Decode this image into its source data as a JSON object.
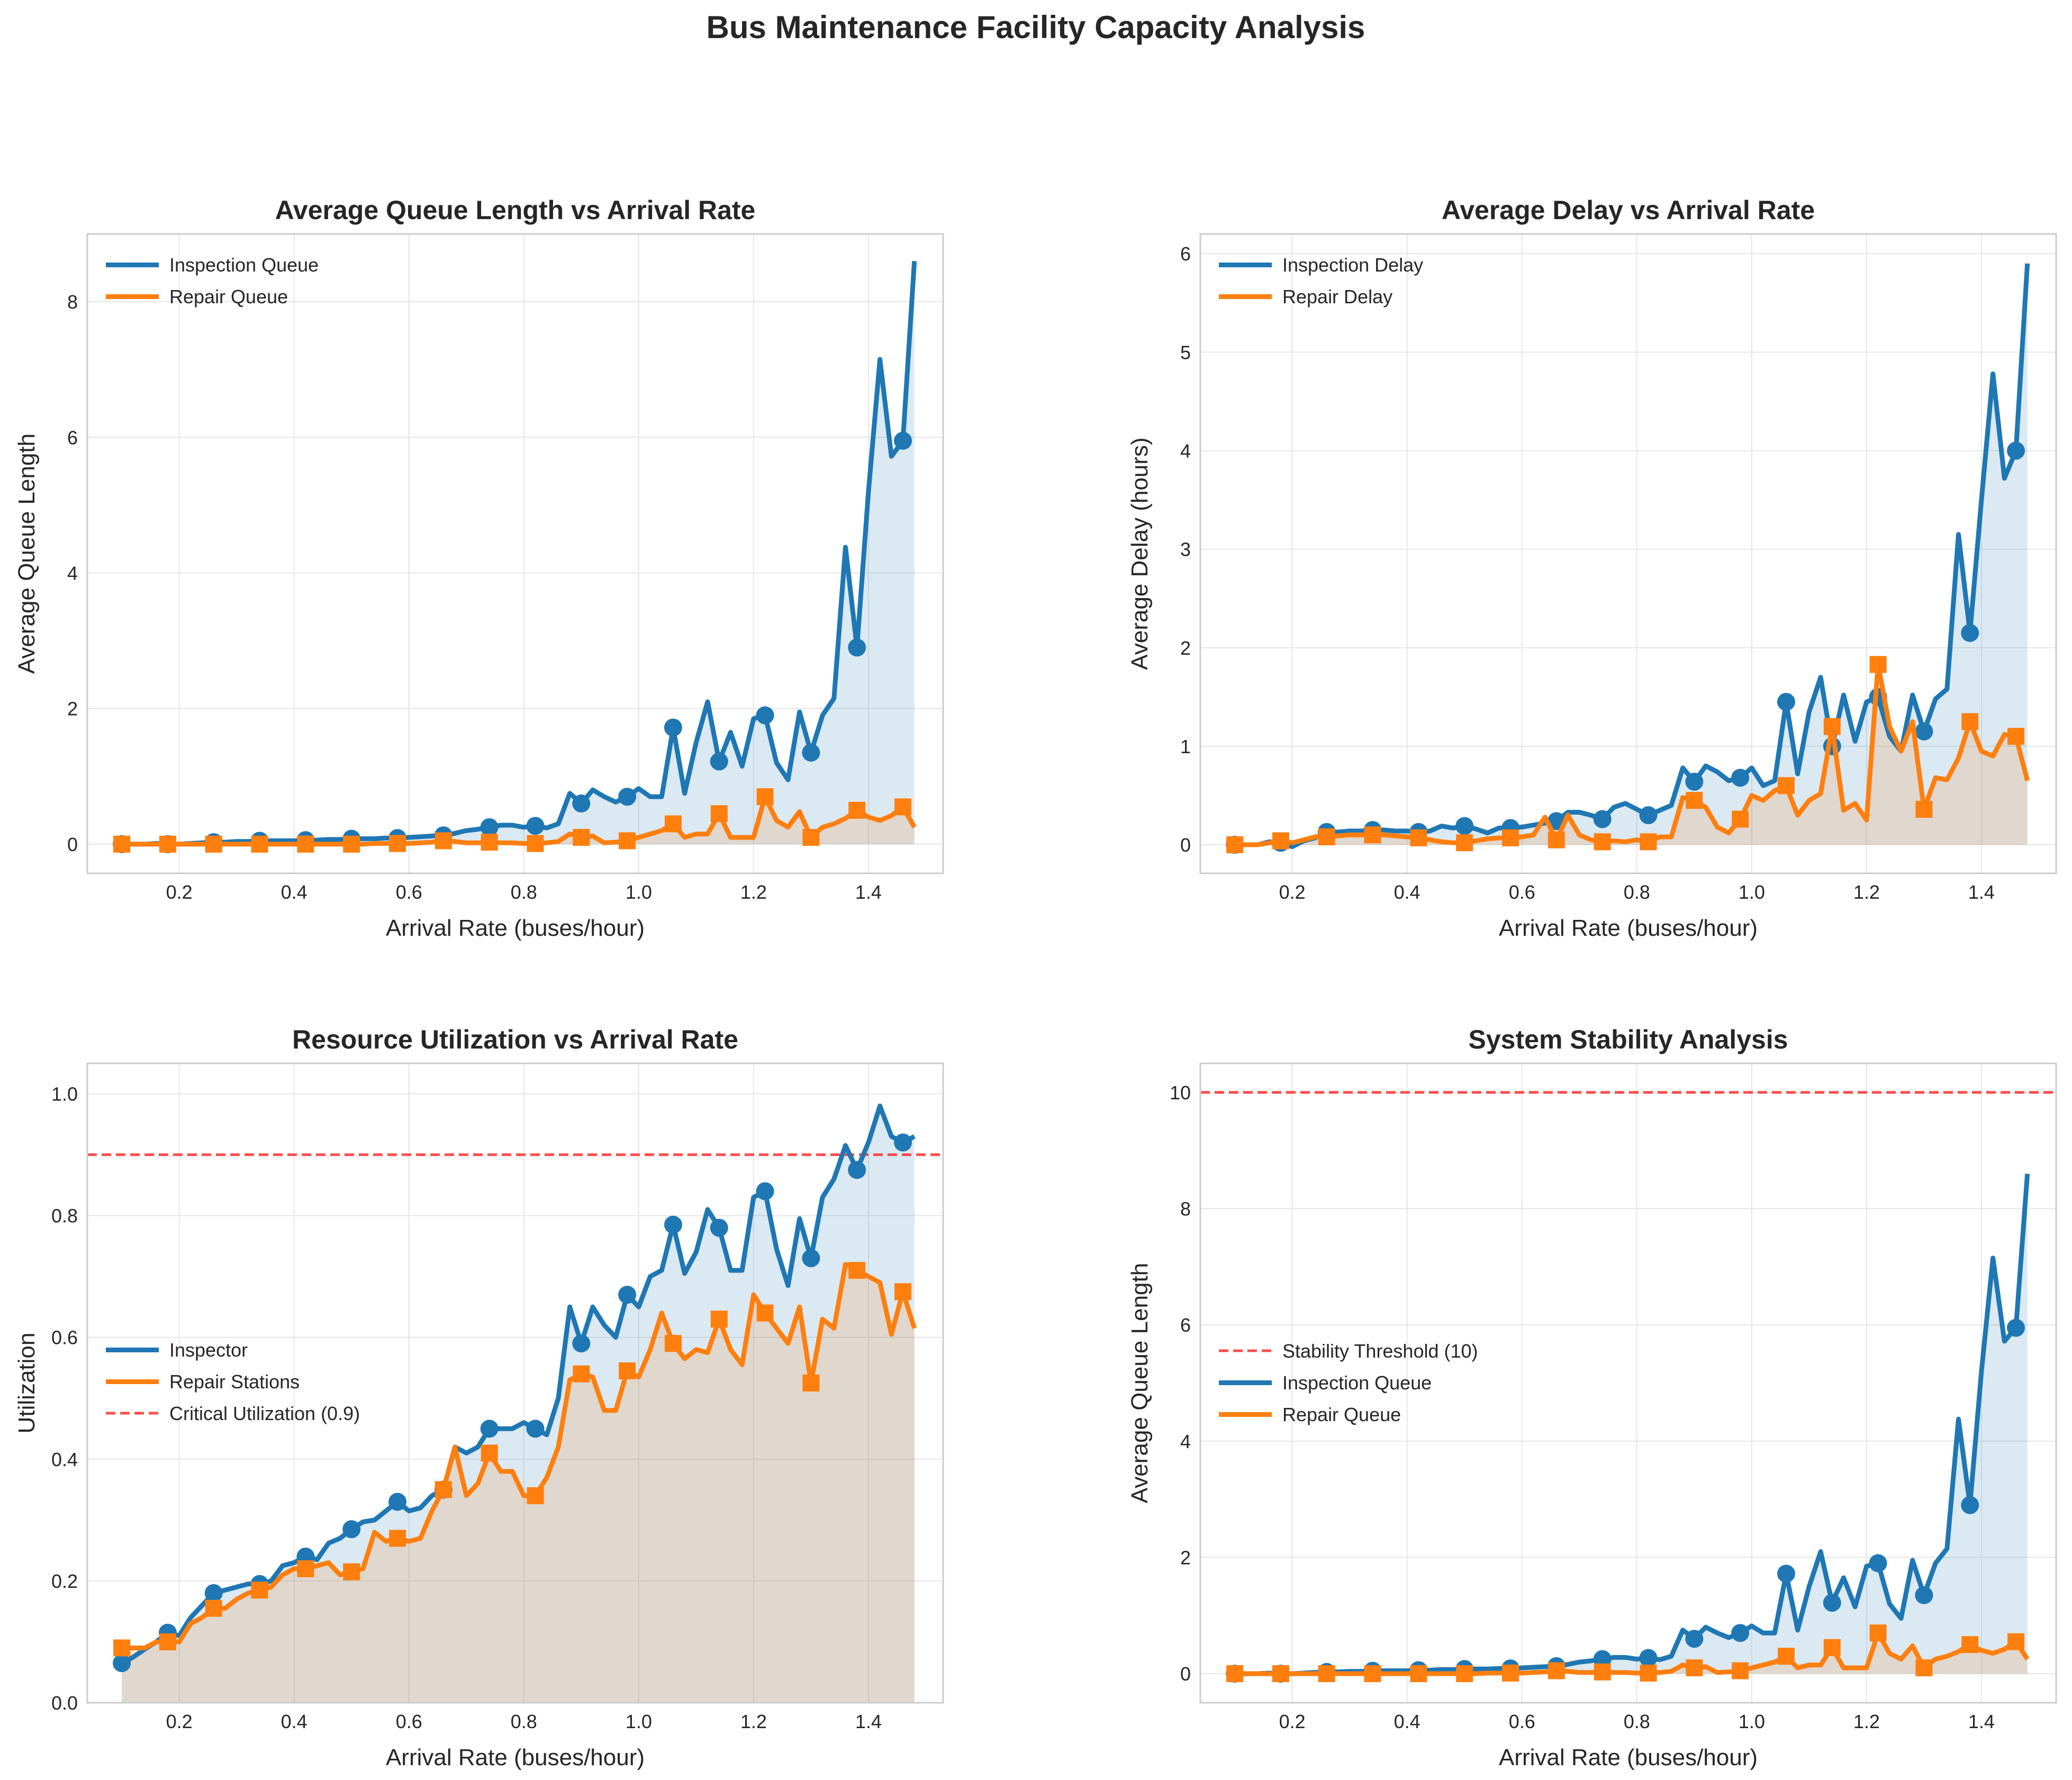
{
  "figure": {
    "suptitle": "Bus Maintenance Facility Capacity Analysis"
  },
  "colors": {
    "blue": "#1f77b4",
    "orange": "#ff7f0e",
    "red": "#ff2020",
    "grid": "#e6e6e6",
    "spine": "#cccccc",
    "text": "#262626"
  },
  "chart_data": [
    {
      "type": "line",
      "title": "Average Queue Length vs Arrival Rate",
      "xlabel": "Arrival Rate (buses/hour)",
      "ylabel": "Average Queue Length",
      "xlim": [
        0.04,
        1.53
      ],
      "ylim": [
        -0.43,
        9.0
      ],
      "xticks": [
        0.2,
        0.4,
        0.6,
        0.8,
        1.0,
        1.2,
        1.4
      ],
      "xtick_labels": [
        "0.2",
        "0.4",
        "0.6",
        "0.8",
        "1.0",
        "1.2",
        "1.4"
      ],
      "yticks": [
        0,
        2,
        4,
        6,
        8
      ],
      "ytick_labels": [
        "0",
        "2",
        "4",
        "6",
        "8"
      ],
      "legend": "top-left",
      "x": [
        0.1,
        0.12,
        0.14,
        0.16,
        0.18,
        0.2,
        0.22,
        0.24,
        0.26,
        0.28,
        0.3,
        0.32,
        0.34,
        0.36,
        0.38,
        0.4,
        0.42,
        0.44,
        0.46,
        0.48,
        0.5,
        0.52,
        0.54,
        0.56,
        0.58,
        0.6,
        0.62,
        0.64,
        0.66,
        0.68,
        0.7,
        0.72,
        0.74,
        0.76,
        0.78,
        0.8,
        0.82,
        0.84,
        0.86,
        0.88,
        0.9,
        0.92,
        0.94,
        0.96,
        0.98,
        1.0,
        1.02,
        1.04,
        1.06,
        1.08,
        1.1,
        1.12,
        1.14,
        1.16,
        1.18,
        1.2,
        1.22,
        1.24,
        1.26,
        1.28,
        1.3,
        1.32,
        1.34,
        1.36,
        1.38,
        1.4,
        1.42,
        1.44,
        1.46,
        1.48
      ],
      "marker_every": 4,
      "series": [
        {
          "name": "Inspection Queue",
          "color": "blue",
          "marker": "circle",
          "values": [
            0.0,
            0.0,
            0.0,
            0.01,
            0.0,
            0.0,
            0.01,
            0.02,
            0.03,
            0.03,
            0.04,
            0.04,
            0.05,
            0.05,
            0.05,
            0.05,
            0.06,
            0.06,
            0.07,
            0.07,
            0.08,
            0.08,
            0.08,
            0.09,
            0.09,
            0.1,
            0.11,
            0.12,
            0.13,
            0.16,
            0.2,
            0.22,
            0.25,
            0.28,
            0.28,
            0.25,
            0.27,
            0.24,
            0.3,
            0.75,
            0.6,
            0.8,
            0.7,
            0.62,
            0.7,
            0.82,
            0.7,
            0.7,
            1.72,
            0.75,
            1.5,
            2.1,
            1.22,
            1.65,
            1.15,
            1.85,
            1.9,
            1.2,
            0.95,
            1.95,
            1.35,
            1.9,
            2.15,
            4.38,
            2.9,
            5.2,
            7.15,
            5.72,
            5.95,
            8.6
          ]
        },
        {
          "name": "Repair Queue",
          "color": "orange",
          "marker": "square",
          "values": [
            0.0,
            0.0,
            0.0,
            0.0,
            0.0,
            0.0,
            0.0,
            0.0,
            0.0,
            0.0,
            0.0,
            0.0,
            0.0,
            0.0,
            0.0,
            0.0,
            0.0,
            0.0,
            0.0,
            0.0,
            0.0,
            0.0,
            0.01,
            0.01,
            0.01,
            0.01,
            0.02,
            0.03,
            0.05,
            0.04,
            0.02,
            0.02,
            0.03,
            0.02,
            0.02,
            0.01,
            0.01,
            0.02,
            0.04,
            0.15,
            0.1,
            0.12,
            0.02,
            0.03,
            0.05,
            0.1,
            0.15,
            0.2,
            0.3,
            0.1,
            0.15,
            0.15,
            0.45,
            0.1,
            0.1,
            0.1,
            0.7,
            0.35,
            0.25,
            0.48,
            0.1,
            0.25,
            0.3,
            0.38,
            0.5,
            0.4,
            0.35,
            0.42,
            0.55,
            0.25
          ]
        }
      ]
    },
    {
      "type": "line",
      "title": "Average Delay vs Arrival Rate",
      "xlabel": "Arrival Rate (buses/hour)",
      "ylabel": "Average Delay (hours)",
      "xlim": [
        0.04,
        1.53
      ],
      "ylim": [
        -0.29,
        6.2
      ],
      "xticks": [
        0.2,
        0.4,
        0.6,
        0.8,
        1.0,
        1.2,
        1.4
      ],
      "xtick_labels": [
        "0.2",
        "0.4",
        "0.6",
        "0.8",
        "1.0",
        "1.2",
        "1.4"
      ],
      "yticks": [
        0,
        1,
        2,
        3,
        4,
        5,
        6
      ],
      "ytick_labels": [
        "0",
        "1",
        "2",
        "3",
        "4",
        "5",
        "6"
      ],
      "legend": "top-left",
      "x": [
        0.1,
        0.12,
        0.14,
        0.16,
        0.18,
        0.2,
        0.22,
        0.24,
        0.26,
        0.28,
        0.3,
        0.32,
        0.34,
        0.36,
        0.38,
        0.4,
        0.42,
        0.44,
        0.46,
        0.48,
        0.5,
        0.52,
        0.54,
        0.56,
        0.58,
        0.6,
        0.62,
        0.64,
        0.66,
        0.68,
        0.7,
        0.72,
        0.74,
        0.76,
        0.78,
        0.8,
        0.82,
        0.84,
        0.86,
        0.88,
        0.9,
        0.92,
        0.94,
        0.96,
        0.98,
        1.0,
        1.02,
        1.04,
        1.06,
        1.08,
        1.1,
        1.12,
        1.14,
        1.16,
        1.18,
        1.2,
        1.22,
        1.24,
        1.26,
        1.28,
        1.3,
        1.32,
        1.34,
        1.36,
        1.38,
        1.4,
        1.42,
        1.44,
        1.46,
        1.48
      ],
      "marker_every": 4,
      "series": [
        {
          "name": "Inspection Delay",
          "color": "blue",
          "marker": "circle",
          "values": [
            0.0,
            0.0,
            0.0,
            0.03,
            0.02,
            -0.02,
            0.04,
            0.07,
            0.13,
            0.13,
            0.14,
            0.14,
            0.15,
            0.15,
            0.14,
            0.14,
            0.13,
            0.14,
            0.19,
            0.17,
            0.19,
            0.16,
            0.12,
            0.17,
            0.17,
            0.18,
            0.2,
            0.22,
            0.24,
            0.33,
            0.33,
            0.3,
            0.26,
            0.38,
            0.42,
            0.36,
            0.3,
            0.35,
            0.4,
            0.78,
            0.64,
            0.8,
            0.74,
            0.65,
            0.68,
            0.78,
            0.6,
            0.65,
            1.45,
            0.72,
            1.35,
            1.7,
            1.0,
            1.52,
            1.05,
            1.45,
            1.5,
            1.1,
            0.95,
            1.52,
            1.15,
            1.48,
            1.58,
            3.15,
            2.15,
            3.5,
            4.78,
            3.72,
            4.0,
            5.9
          ]
        },
        {
          "name": "Repair Delay",
          "color": "orange",
          "marker": "square",
          "values": [
            0.0,
            0.0,
            0.0,
            0.02,
            0.04,
            0.02,
            0.05,
            0.08,
            0.08,
            0.09,
            0.1,
            0.1,
            0.1,
            0.1,
            0.09,
            0.08,
            0.07,
            0.05,
            0.03,
            0.02,
            0.02,
            0.04,
            0.06,
            0.07,
            0.07,
            0.08,
            0.1,
            0.28,
            0.05,
            0.3,
            0.1,
            0.05,
            0.03,
            0.04,
            0.03,
            0.05,
            0.03,
            0.08,
            0.08,
            0.48,
            0.45,
            0.38,
            0.18,
            0.12,
            0.26,
            0.5,
            0.45,
            0.55,
            0.6,
            0.3,
            0.45,
            0.52,
            1.2,
            0.35,
            0.42,
            0.25,
            1.83,
            1.2,
            0.95,
            1.25,
            0.36,
            0.68,
            0.66,
            0.88,
            1.25,
            0.95,
            0.9,
            1.12,
            1.1,
            0.65
          ]
        }
      ]
    },
    {
      "type": "area",
      "title": "Resource Utilization vs Arrival Rate",
      "xlabel": "Arrival Rate (buses/hour)",
      "ylabel": "Utilization",
      "xlim": [
        0.04,
        1.53
      ],
      "ylim": [
        0.0,
        1.05
      ],
      "xticks": [
        0.2,
        0.4,
        0.6,
        0.8,
        1.0,
        1.2,
        1.4
      ],
      "xtick_labels": [
        "0.2",
        "0.4",
        "0.6",
        "0.8",
        "1.0",
        "1.2",
        "1.4"
      ],
      "yticks": [
        0.0,
        0.2,
        0.4,
        0.6,
        0.8,
        1.0
      ],
      "ytick_labels": [
        "0.0",
        "0.2",
        "0.4",
        "0.6",
        "0.8",
        "1.0"
      ],
      "legend": "center-left",
      "hline": {
        "value": 0.9,
        "label": "Critical Utilization (0.9)",
        "color": "red"
      },
      "x": [
        0.1,
        0.12,
        0.14,
        0.16,
        0.18,
        0.2,
        0.22,
        0.24,
        0.26,
        0.28,
        0.3,
        0.32,
        0.34,
        0.36,
        0.38,
        0.4,
        0.42,
        0.44,
        0.46,
        0.48,
        0.5,
        0.52,
        0.54,
        0.56,
        0.58,
        0.6,
        0.62,
        0.64,
        0.66,
        0.68,
        0.7,
        0.72,
        0.74,
        0.76,
        0.78,
        0.8,
        0.82,
        0.84,
        0.86,
        0.88,
        0.9,
        0.92,
        0.94,
        0.96,
        0.98,
        1.0,
        1.02,
        1.04,
        1.06,
        1.08,
        1.1,
        1.12,
        1.14,
        1.16,
        1.18,
        1.2,
        1.22,
        1.24,
        1.26,
        1.28,
        1.3,
        1.32,
        1.34,
        1.36,
        1.38,
        1.4,
        1.42,
        1.44,
        1.46,
        1.48
      ],
      "marker_every": 4,
      "series": [
        {
          "name": "Inspector",
          "color": "blue",
          "marker": "circle",
          "values": [
            0.065,
            0.075,
            0.088,
            0.1,
            0.115,
            0.11,
            0.14,
            0.16,
            0.18,
            0.185,
            0.19,
            0.195,
            0.195,
            0.2,
            0.225,
            0.23,
            0.24,
            0.235,
            0.262,
            0.27,
            0.285,
            0.297,
            0.3,
            0.315,
            0.33,
            0.315,
            0.32,
            0.34,
            0.35,
            0.42,
            0.41,
            0.42,
            0.45,
            0.45,
            0.45,
            0.46,
            0.45,
            0.44,
            0.5,
            0.65,
            0.59,
            0.65,
            0.62,
            0.6,
            0.67,
            0.65,
            0.7,
            0.71,
            0.785,
            0.705,
            0.74,
            0.81,
            0.78,
            0.71,
            0.71,
            0.83,
            0.84,
            0.745,
            0.685,
            0.795,
            0.73,
            0.83,
            0.86,
            0.915,
            0.875,
            0.92,
            0.98,
            0.93,
            0.92,
            0.93
          ]
        },
        {
          "name": "Repair Stations",
          "color": "orange",
          "marker": "square",
          "values": [
            0.09,
            0.09,
            0.09,
            0.1,
            0.1,
            0.1,
            0.13,
            0.14,
            0.155,
            0.155,
            0.17,
            0.18,
            0.185,
            0.19,
            0.21,
            0.22,
            0.22,
            0.225,
            0.23,
            0.21,
            0.215,
            0.22,
            0.28,
            0.265,
            0.27,
            0.265,
            0.27,
            0.315,
            0.35,
            0.42,
            0.34,
            0.36,
            0.41,
            0.38,
            0.38,
            0.34,
            0.34,
            0.37,
            0.42,
            0.53,
            0.54,
            0.535,
            0.48,
            0.48,
            0.545,
            0.535,
            0.58,
            0.64,
            0.59,
            0.565,
            0.58,
            0.575,
            0.63,
            0.58,
            0.555,
            0.67,
            0.64,
            0.615,
            0.59,
            0.65,
            0.525,
            0.63,
            0.615,
            0.72,
            0.71,
            0.7,
            0.69,
            0.605,
            0.675,
            0.615
          ]
        }
      ]
    },
    {
      "type": "line",
      "title": "System Stability Analysis",
      "xlabel": "Arrival Rate (buses/hour)",
      "ylabel": "Average Queue Length",
      "xlim": [
        0.04,
        1.53
      ],
      "ylim": [
        -0.5,
        10.5
      ],
      "xticks": [
        0.2,
        0.4,
        0.6,
        0.8,
        1.0,
        1.2,
        1.4
      ],
      "xtick_labels": [
        "0.2",
        "0.4",
        "0.6",
        "0.8",
        "1.0",
        "1.2",
        "1.4"
      ],
      "yticks": [
        0,
        2,
        4,
        6,
        8,
        10
      ],
      "ytick_labels": [
        "0",
        "2",
        "4",
        "6",
        "8",
        "10"
      ],
      "legend": "center-left",
      "hline": {
        "value": 10,
        "label": "Stability Threshold (10)",
        "color": "red"
      },
      "x": [
        0.1,
        0.12,
        0.14,
        0.16,
        0.18,
        0.2,
        0.22,
        0.24,
        0.26,
        0.28,
        0.3,
        0.32,
        0.34,
        0.36,
        0.38,
        0.4,
        0.42,
        0.44,
        0.46,
        0.48,
        0.5,
        0.52,
        0.54,
        0.56,
        0.58,
        0.6,
        0.62,
        0.64,
        0.66,
        0.68,
        0.7,
        0.72,
        0.74,
        0.76,
        0.78,
        0.8,
        0.82,
        0.84,
        0.86,
        0.88,
        0.9,
        0.92,
        0.94,
        0.96,
        0.98,
        1.0,
        1.02,
        1.04,
        1.06,
        1.08,
        1.1,
        1.12,
        1.14,
        1.16,
        1.18,
        1.2,
        1.22,
        1.24,
        1.26,
        1.28,
        1.3,
        1.32,
        1.34,
        1.36,
        1.38,
        1.4,
        1.42,
        1.44,
        1.46,
        1.48
      ],
      "marker_every": 4,
      "series": [
        {
          "name": "Inspection Queue",
          "color": "blue",
          "marker": "circle",
          "values": [
            0.0,
            0.0,
            0.0,
            0.01,
            0.0,
            0.0,
            0.01,
            0.02,
            0.03,
            0.03,
            0.04,
            0.04,
            0.05,
            0.05,
            0.05,
            0.05,
            0.06,
            0.06,
            0.07,
            0.07,
            0.08,
            0.08,
            0.08,
            0.09,
            0.09,
            0.1,
            0.11,
            0.12,
            0.13,
            0.16,
            0.2,
            0.22,
            0.25,
            0.28,
            0.28,
            0.25,
            0.27,
            0.24,
            0.3,
            0.75,
            0.6,
            0.8,
            0.7,
            0.62,
            0.7,
            0.82,
            0.7,
            0.7,
            1.72,
            0.75,
            1.5,
            2.1,
            1.22,
            1.65,
            1.15,
            1.85,
            1.9,
            1.2,
            0.95,
            1.95,
            1.35,
            1.9,
            2.15,
            4.38,
            2.9,
            5.2,
            7.15,
            5.72,
            5.95,
            8.6
          ]
        },
        {
          "name": "Repair Queue",
          "color": "orange",
          "marker": "square",
          "values": [
            0.0,
            0.0,
            0.0,
            0.0,
            0.0,
            0.0,
            0.0,
            0.0,
            0.0,
            0.0,
            0.0,
            0.0,
            0.0,
            0.0,
            0.0,
            0.0,
            0.0,
            0.0,
            0.0,
            0.0,
            0.0,
            0.0,
            0.01,
            0.01,
            0.01,
            0.01,
            0.02,
            0.03,
            0.05,
            0.04,
            0.02,
            0.02,
            0.03,
            0.02,
            0.02,
            0.01,
            0.01,
            0.02,
            0.04,
            0.15,
            0.1,
            0.12,
            0.02,
            0.03,
            0.05,
            0.1,
            0.15,
            0.2,
            0.3,
            0.1,
            0.15,
            0.15,
            0.45,
            0.1,
            0.1,
            0.1,
            0.7,
            0.35,
            0.25,
            0.48,
            0.1,
            0.25,
            0.3,
            0.38,
            0.5,
            0.4,
            0.35,
            0.42,
            0.55,
            0.25
          ]
        }
      ]
    }
  ]
}
